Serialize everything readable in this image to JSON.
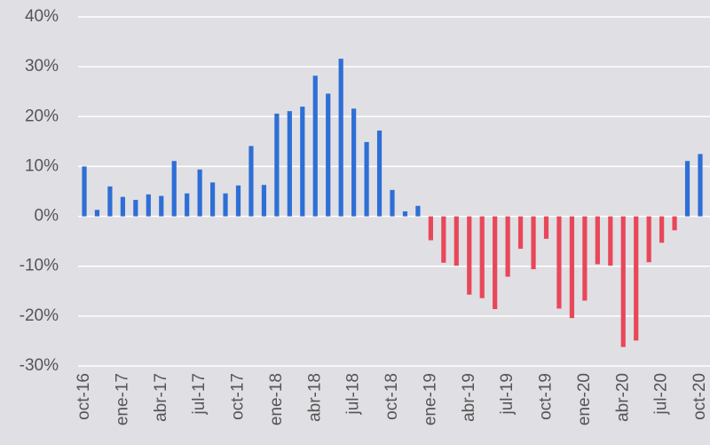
{
  "chart_data": {
    "type": "bar",
    "categories": [
      "oct-16",
      null,
      null,
      "ene-17",
      null,
      null,
      "abr-17",
      null,
      null,
      "jul-17",
      null,
      null,
      "oct-17",
      null,
      null,
      "ene-18",
      null,
      null,
      "abr-18",
      null,
      null,
      "jul-18",
      null,
      null,
      "oct-18",
      null,
      null,
      "ene-19",
      null,
      null,
      "abr-19",
      null,
      null,
      "jul-19",
      null,
      null,
      "oct-19",
      null,
      null,
      "ene-20",
      null,
      null,
      "abr-20",
      null,
      null,
      "jul-20",
      null,
      null,
      "oct-20"
    ],
    "values": [
      10,
      1.3,
      6,
      3.9,
      3.3,
      4.4,
      4.1,
      11.1,
      4.6,
      9.4,
      6.8,
      4.6,
      6.2,
      14.1,
      6.3,
      20.6,
      21.1,
      22,
      28.2,
      24.6,
      31.6,
      21.6,
      14.9,
      17.2,
      5.3,
      1,
      2.1,
      -4.8,
      -9.3,
      -9.9,
      -15.7,
      -16.4,
      -18.6,
      -12.1,
      -6.5,
      -10.6,
      -4.5,
      -18.5,
      -20.4,
      -16.9,
      -9.6,
      -9.9,
      -26.2,
      -24.9,
      -9.2,
      -5.3,
      -2.8,
      11.1,
      12.5
    ],
    "color": "#2e6fd6",
    "negative_color": "#e8475a",
    "ylim": [
      -30,
      40
    ],
    "yticks": [
      {
        "value": -30,
        "label": "-30%"
      },
      {
        "value": -20,
        "label": "-20%"
      },
      {
        "value": -10,
        "label": "-10%"
      },
      {
        "value": 0,
        "label": "0%"
      },
      {
        "value": 10,
        "label": "10%"
      },
      {
        "value": 20,
        "label": "20%"
      },
      {
        "value": 30,
        "label": "30%"
      },
      {
        "value": 40,
        "label": "40%"
      }
    ],
    "grid": true
  }
}
